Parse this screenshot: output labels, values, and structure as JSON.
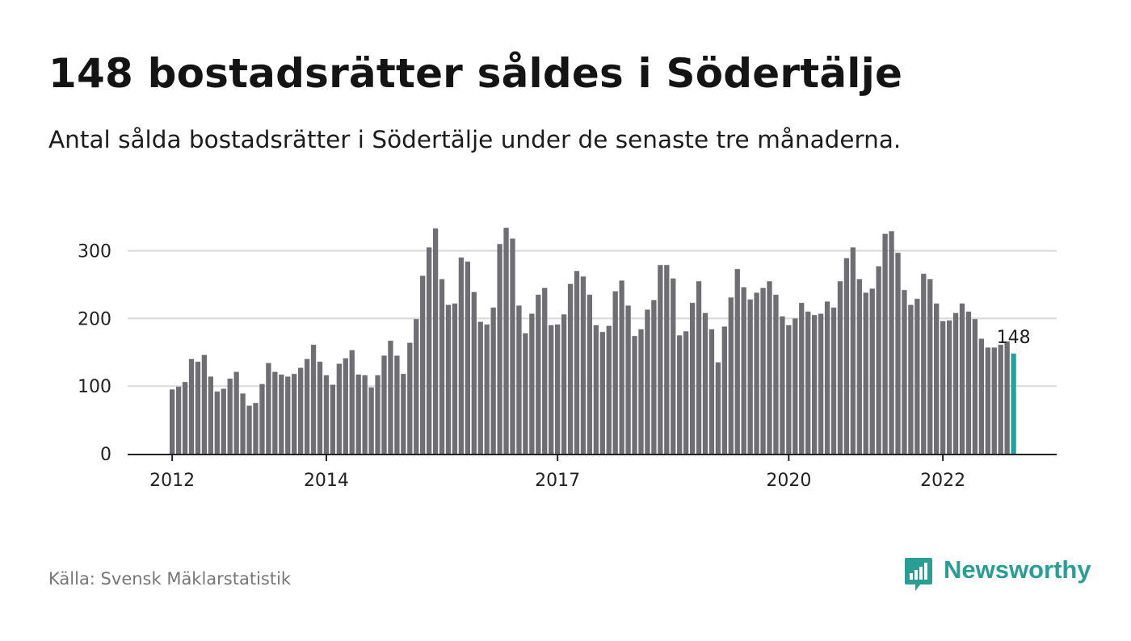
{
  "title": "148 bostadsrätter såldes i Södertälje",
  "subtitle": "Antal sålda bostadsrätter i Södertälje under de senaste tre månaderna.",
  "source": "Källa: Svensk Mäklarstatistik",
  "logo": {
    "text": "Newsworthy"
  },
  "colors": {
    "bar": "#6f6f73",
    "highlight": "#1fa39a",
    "grid": "#d9d9d9",
    "axis": "#222222",
    "brand": "#2a9d95"
  },
  "chart_data": {
    "type": "bar",
    "xlabel": "",
    "ylabel": "",
    "ylim": [
      0,
      340
    ],
    "yticks": [
      0,
      100,
      200,
      300
    ],
    "x_tick_labels": [
      {
        "label": "2012",
        "index": 0
      },
      {
        "label": "2014",
        "index": 24
      },
      {
        "label": "2017",
        "index": 60
      },
      {
        "label": "2020",
        "index": 96
      },
      {
        "label": "2022",
        "index": 120
      }
    ],
    "start_label": "2012-01",
    "values": [
      95,
      99,
      106,
      140,
      136,
      146,
      114,
      92,
      96,
      111,
      121,
      89,
      71,
      75,
      103,
      134,
      121,
      117,
      114,
      118,
      127,
      140,
      161,
      136,
      116,
      102,
      133,
      141,
      153,
      117,
      116,
      98,
      116,
      145,
      167,
      145,
      118,
      164,
      199,
      263,
      305,
      333,
      258,
      220,
      222,
      290,
      284,
      239,
      195,
      191,
      216,
      310,
      334,
      318,
      219,
      178,
      207,
      235,
      245,
      190,
      191,
      206,
      251,
      270,
      262,
      235,
      190,
      180,
      189,
      240,
      256,
      219,
      174,
      184,
      213,
      227,
      279,
      279,
      259,
      175,
      181,
      223,
      255,
      208,
      184,
      135,
      188,
      231,
      273,
      246,
      228,
      238,
      245,
      255,
      235,
      203,
      190,
      200,
      223,
      210,
      205,
      207,
      225,
      216,
      255,
      289,
      305,
      258,
      238,
      244,
      277,
      325,
      329,
      297,
      242,
      220,
      229,
      266,
      258,
      222,
      196,
      197,
      208,
      222,
      210,
      199,
      170,
      157,
      157,
      161,
      166,
      148
    ],
    "highlight_index": 131,
    "highlight_label": "148"
  }
}
